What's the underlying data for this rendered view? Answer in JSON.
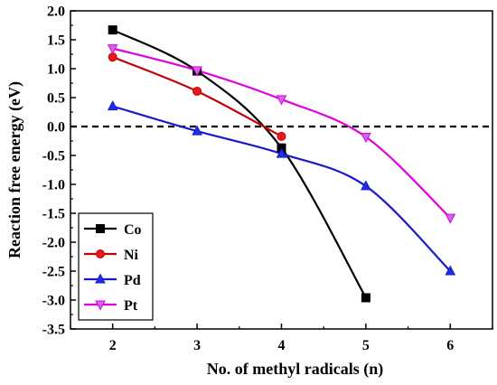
{
  "chart_data": {
    "type": "line",
    "xlabel": "No. of methyl radicals (n)",
    "ylabel": "Reaction free energy (eV)",
    "xlim": [
      1.5,
      6.5
    ],
    "ylim": [
      -3.5,
      2.0
    ],
    "x_ticks": [
      2,
      3,
      4,
      5,
      6
    ],
    "x_tick_labels": [
      "2",
      "3",
      "4",
      "5",
      "6"
    ],
    "y_ticks": [
      -3.5,
      -3.0,
      -2.5,
      -2.0,
      -1.5,
      -1.0,
      -0.5,
      0.0,
      0.5,
      1.0,
      1.5,
      2.0
    ],
    "y_tick_labels": [
      "-3.5",
      "-3.0",
      "-2.5",
      "-2.0",
      "-1.5",
      "-1.0",
      "-0.5",
      "0.0",
      "0.5",
      "1.0",
      "1.5",
      "2.0"
    ],
    "reference_line": {
      "y": 0.0,
      "style": "dashed",
      "color": "#000000"
    },
    "legend_position": "bottom-left",
    "smoothed": true,
    "series": [
      {
        "name": "Co",
        "marker": "square",
        "color": "#000000",
        "x": [
          2,
          3,
          4,
          5
        ],
        "values": [
          1.67,
          0.96,
          -0.37,
          -2.96
        ]
      },
      {
        "name": "Ni",
        "marker": "circle",
        "color": "#e8191a",
        "line_color": "#c40000",
        "x": [
          2,
          3,
          4
        ],
        "values": [
          1.2,
          0.61,
          -0.17
        ]
      },
      {
        "name": "Pd",
        "marker": "triangle-up",
        "color": "#1f2fe0",
        "line_color": "#1a1acc",
        "x": [
          2,
          3,
          4,
          5,
          6
        ],
        "values": [
          0.35,
          -0.08,
          -0.47,
          -1.03,
          -2.5
        ]
      },
      {
        "name": "Pt",
        "marker": "triangle-down",
        "color": "#cc66ee",
        "line_color": "#e000e0",
        "x": [
          2,
          3,
          4,
          5,
          6
        ],
        "values": [
          1.35,
          0.97,
          0.47,
          -0.18,
          -1.58
        ]
      }
    ]
  }
}
